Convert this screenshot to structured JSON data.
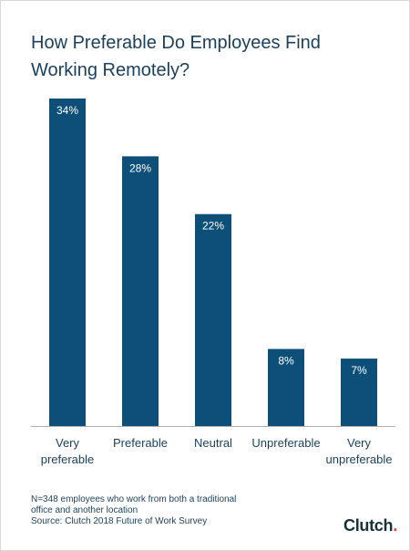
{
  "chart_data": {
    "type": "bar",
    "title": "How Preferable Do Employees Find Working Remotely?",
    "categories": [
      "Very preferable",
      "Preferable",
      "Neutral",
      "Unpreferable",
      "Very unpreferable"
    ],
    "category_lines": [
      [
        "Very",
        "preferable"
      ],
      [
        "Preferable"
      ],
      [
        "Neutral"
      ],
      [
        "Unpreferable"
      ],
      [
        "Very",
        "unpreferable"
      ]
    ],
    "values": [
      34,
      28,
      22,
      8,
      7
    ],
    "value_labels": [
      "34%",
      "28%",
      "22%",
      "8%",
      "7%"
    ],
    "ylim": [
      0,
      34
    ],
    "xlabel": "",
    "ylabel": "",
    "grid": false,
    "bar_color": "#0d4f78",
    "label_color": "#ffffff",
    "axis_color": "#b0b0b0",
    "text_color": "#1a3f5c"
  },
  "footnote": {
    "line1": "N=348 employees who work from both a traditional",
    "line2": "office and another location",
    "line3": "Source: Clutch 2018 Future of Work Survey"
  },
  "logo": {
    "text": "Clutch",
    "accent_color": "#ef4335"
  }
}
